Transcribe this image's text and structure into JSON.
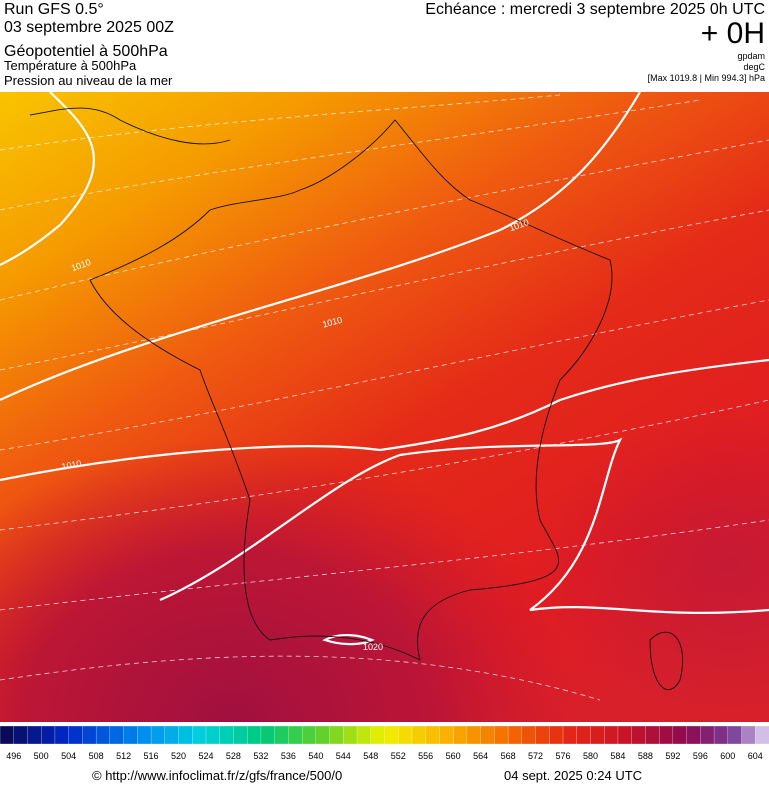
{
  "header": {
    "run": "Run GFS 0.5°",
    "date": "03 septembre 2025 00Z",
    "field1": "Géopotentiel à 500hPa",
    "field2": "Température à 500hPa",
    "field3": "Pression au niveau de la mer",
    "echeance": "Echéance : mercredi 3 septembre 2025 0h UTC",
    "offset": "+ 0H",
    "unit1": "gpdam",
    "unit2": "degC",
    "range": "[Max 1019.8 | Min 994.3] hPa"
  },
  "map": {
    "isobar_labels": [
      "1010",
      "1010",
      "1010",
      "1010",
      "1020"
    ]
  },
  "colorbar": {
    "labels": [
      496,
      500,
      504,
      508,
      512,
      516,
      520,
      524,
      528,
      532,
      536,
      540,
      544,
      548,
      552,
      556,
      560,
      564,
      568,
      572,
      576,
      580,
      584,
      588,
      592,
      596,
      600,
      604
    ]
  },
  "footer": {
    "url": "© http://www.infoclimat.fr/z/gfs/france/500/0",
    "timestamp": "04 sept. 2025  0:24 UTC"
  }
}
